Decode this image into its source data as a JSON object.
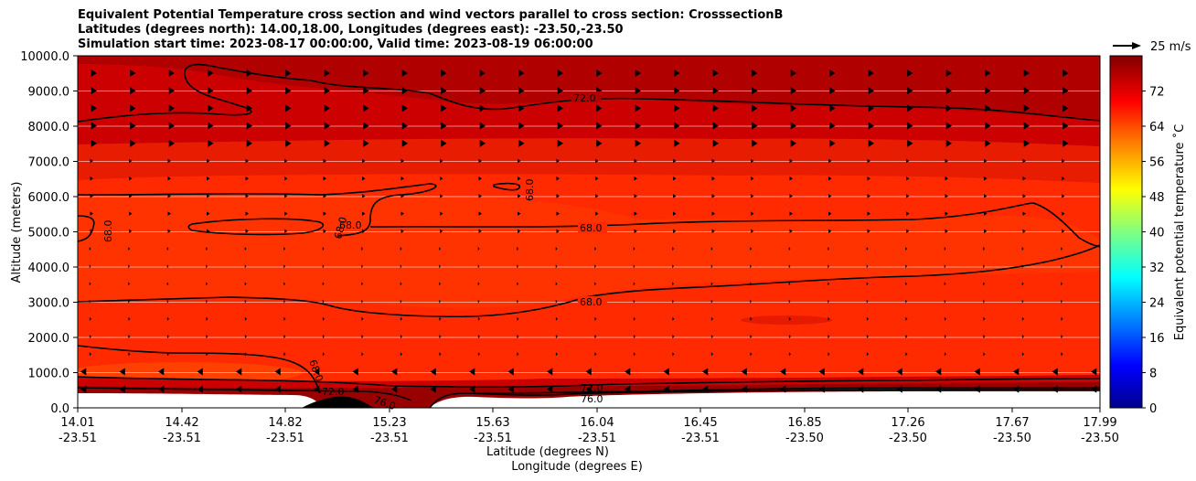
{
  "chart_data": {
    "type": "contour",
    "title_lines": [
      "Equivalent Potential Temperature cross section and wind vectors parallel to cross section: CrosssectionB",
      "Latitudes (degrees north): 14.00,18.00, Longitudes (degrees east): -23.50,-23.50",
      "Simulation start time: 2023-08-17 00:00:00, Valid time: 2023-08-19 06:00:00"
    ],
    "ylabel": "Altitude (meters)",
    "xlabel_lat": "Latitude (degrees N)",
    "xlabel_lon": "Longitude (degrees E)",
    "ylim": [
      0,
      10000
    ],
    "yticks": [
      "0.0",
      "1000.0",
      "2000.0",
      "3000.0",
      "4000.0",
      "5000.0",
      "6000.0",
      "7000.0",
      "8000.0",
      "9000.0",
      "10000.0"
    ],
    "xticks_lat": [
      "14.01",
      "14.42",
      "14.82",
      "15.23",
      "15.63",
      "16.04",
      "16.45",
      "16.85",
      "17.26",
      "17.67",
      "17.99"
    ],
    "xticks_lon": [
      "-23.51",
      "-23.51",
      "-23.51",
      "-23.51",
      "-23.51",
      "-23.51",
      "-23.51",
      "-23.50",
      "-23.50",
      "-23.50",
      "-23.50"
    ],
    "colorbar": {
      "label": "Equivalent potential temperature ˚C",
      "range": [
        0,
        80
      ],
      "ticks": [
        "0",
        "8",
        "16",
        "24",
        "32",
        "40",
        "48",
        "56",
        "64",
        "72"
      ]
    },
    "quiver_key": {
      "label": "25 m/s",
      "value": 25
    },
    "contour_labels": [
      "72.0",
      "68.0",
      "68.0",
      "68.0",
      "68.0",
      "68.0",
      "68.0",
      "68.0",
      "72.0",
      "76.0",
      "68.0",
      "72.0",
      "76.0"
    ],
    "colors": {
      "band_low": "#e81c00",
      "band_mid": "#ff2a00",
      "band_hi": "#cc0000",
      "band_top": "#b00000",
      "ground": "#000000"
    }
  }
}
